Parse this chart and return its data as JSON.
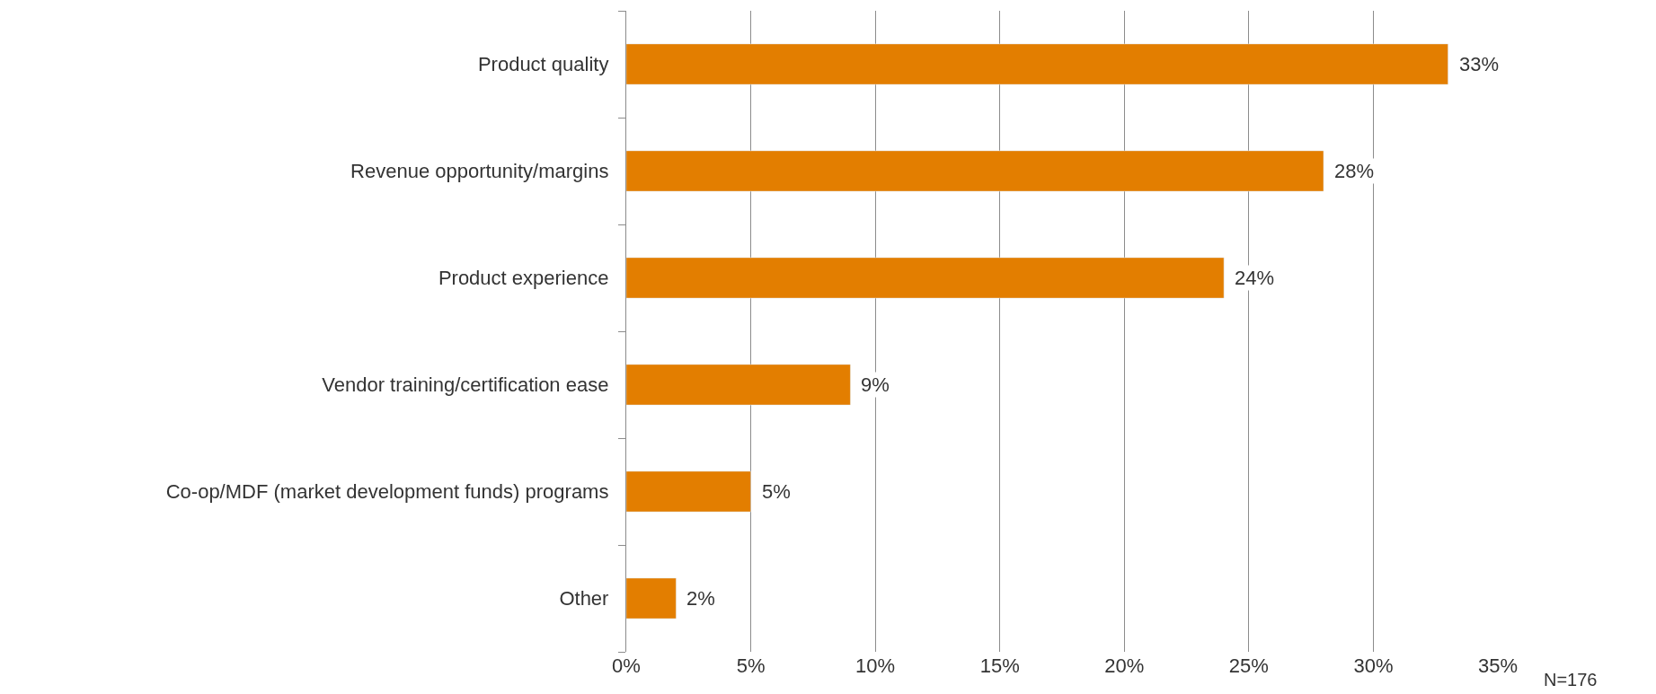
{
  "chart_data": {
    "type": "bar",
    "orientation": "horizontal",
    "categories": [
      "Product quality",
      "Revenue opportunity/margins",
      "Product experience",
      "Vendor training/certification ease",
      "Co-op/MDF (market development funds) programs",
      "Other"
    ],
    "values": [
      33,
      28,
      24,
      9,
      5,
      2
    ],
    "color": "#e37e00",
    "xlim": [
      0,
      35
    ],
    "xticks": [
      {
        "value": 0,
        "label": "0%"
      },
      {
        "value": 5,
        "label": "5%"
      },
      {
        "value": 10,
        "label": "10%"
      },
      {
        "value": 15,
        "label": "15%"
      },
      {
        "value": 20,
        "label": "20%"
      },
      {
        "value": 25,
        "label": "25%"
      },
      {
        "value": 30,
        "label": "30%"
      },
      {
        "value": 35,
        "label": "35%"
      }
    ],
    "value_labels": [
      "33%",
      "28%",
      "24%",
      "9%",
      "5%",
      "2%"
    ],
    "grid": "x",
    "annotations": [
      "N=176"
    ]
  }
}
